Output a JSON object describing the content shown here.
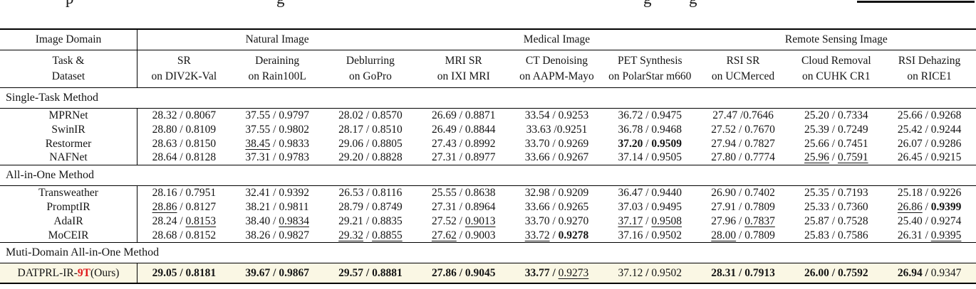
{
  "caption_fragments": {
    "glyphs": [
      "p",
      "g",
      "g",
      "g"
    ],
    "underline_fragment": true
  },
  "colors": {
    "highlight_row_bg": "#faf7e4",
    "accent_red": "#e0191d",
    "rule_black": "#000000"
  },
  "table": {
    "corner_header": "Image Domain",
    "task_header_line1": "Task &",
    "task_header_line2": "Dataset",
    "domain_groups": [
      {
        "label": "Natural Image",
        "span": 3
      },
      {
        "label": "Medical Image",
        "span": 3
      },
      {
        "label": "Remote Sensing Image",
        "span": 3
      }
    ],
    "tasks": [
      {
        "task": "SR",
        "dataset": "on DIV2K-Val"
      },
      {
        "task": "Deraining",
        "dataset": "on Rain100L"
      },
      {
        "task": "Deblurring",
        "dataset": "on GoPro"
      },
      {
        "task": "MRI SR",
        "dataset": "on IXI MRI"
      },
      {
        "task": "CT Denoising",
        "dataset": "on AAPM-Mayo"
      },
      {
        "task": "PET Synthesis",
        "dataset": "on PolarStar m660"
      },
      {
        "task": "RSI SR",
        "dataset": "on UCMerced"
      },
      {
        "task": "Cloud Removal",
        "dataset": "on CUHK CR1"
      },
      {
        "task": "RSI Dehazing",
        "dataset": "on RICE1"
      }
    ],
    "style_legend": "cell = [psnr, ssim, psnr_style, ssim_style, optional_separator]; style: b=bold, u=underline; default separator ' / '",
    "sections": [
      {
        "title": "Single-Task Method",
        "rows": [
          {
            "method": "MPRNet",
            "cells": [
              [
                "28.32",
                "0.8067",
                "",
                ""
              ],
              [
                "37.55",
                "0.9797",
                "",
                ""
              ],
              [
                "28.02",
                "0.8570",
                "",
                ""
              ],
              [
                "26.69",
                "0.8871",
                "",
                ""
              ],
              [
                "33.54",
                "0.9253",
                "",
                ""
              ],
              [
                "36.72",
                "0.9475",
                "",
                ""
              ],
              [
                "27.47",
                "0.7646",
                "",
                "",
                " /"
              ],
              [
                "25.20",
                "0.7334",
                "",
                ""
              ],
              [
                "25.66",
                "0.9268",
                "",
                ""
              ]
            ]
          },
          {
            "method": "SwinIR",
            "cells": [
              [
                "28.80",
                "0.8109",
                "",
                ""
              ],
              [
                "37.55",
                "0.9802",
                "",
                ""
              ],
              [
                "28.17",
                "0.8510",
                "",
                ""
              ],
              [
                "26.49",
                "0.8844",
                "",
                ""
              ],
              [
                "33.63",
                "0.9251",
                "",
                "",
                " /"
              ],
              [
                "36.78",
                "0.9468",
                "",
                ""
              ],
              [
                "27.52",
                "0.7670",
                "",
                ""
              ],
              [
                "25.39",
                "0.7249",
                "",
                ""
              ],
              [
                "25.42",
                "0.9244",
                "",
                ""
              ]
            ]
          },
          {
            "method": "Restormer",
            "cells": [
              [
                "28.63",
                "0.8150",
                "",
                ""
              ],
              [
                "38.45",
                "0.9833",
                "u",
                ""
              ],
              [
                "29.06",
                "0.8805",
                "",
                ""
              ],
              [
                "27.43",
                "0.8992",
                "",
                ""
              ],
              [
                "33.70",
                "0.9269",
                "",
                ""
              ],
              [
                "37.20",
                "0.9509",
                "b",
                "b"
              ],
              [
                "27.94",
                "0.7827",
                "",
                ""
              ],
              [
                "25.66",
                "0.7451",
                "",
                ""
              ],
              [
                "26.07",
                "0.9286",
                "",
                ""
              ]
            ]
          },
          {
            "method": "NAFNet",
            "cells": [
              [
                "28.64",
                "0.8128",
                "",
                ""
              ],
              [
                "37.31",
                "0.9783",
                "",
                ""
              ],
              [
                "29.20",
                "0.8828",
                "",
                ""
              ],
              [
                "27.31",
                "0.8977",
                "",
                ""
              ],
              [
                "33.66",
                "0.9267",
                "",
                ""
              ],
              [
                "37.14",
                "0.9505",
                "",
                ""
              ],
              [
                "27.80",
                "0.7774",
                "",
                ""
              ],
              [
                "25.96",
                "0.7591",
                "u",
                "u"
              ],
              [
                "26.45",
                "0.9215",
                "",
                ""
              ]
            ]
          }
        ]
      },
      {
        "title": "All-in-One Method",
        "rows": [
          {
            "method": "Transweather",
            "cells": [
              [
                "28.16",
                "0.7951",
                "",
                ""
              ],
              [
                "32.41",
                "0.9392",
                "",
                ""
              ],
              [
                "26.53",
                "0.8116",
                "",
                ""
              ],
              [
                "25.55",
                "0.8638",
                "",
                ""
              ],
              [
                "32.98",
                "0.9209",
                "",
                ""
              ],
              [
                "36.47",
                "0.9440",
                "",
                ""
              ],
              [
                "26.90",
                "0.7402",
                "",
                ""
              ],
              [
                "25.35",
                "0.7193",
                "",
                ""
              ],
              [
                "25.18",
                "0.9226",
                "",
                ""
              ]
            ]
          },
          {
            "method": "PromptIR",
            "cells": [
              [
                "28.86",
                "0.8127",
                "u",
                ""
              ],
              [
                "38.21",
                "0.9811",
                "",
                ""
              ],
              [
                "28.79",
                "0.8749",
                "",
                ""
              ],
              [
                "27.31",
                "0.8964",
                "",
                ""
              ],
              [
                "33.66",
                "0.9265",
                "",
                ""
              ],
              [
                "37.03",
                "0.9495",
                "",
                ""
              ],
              [
                "27.91",
                "0.7809",
                "",
                ""
              ],
              [
                "25.33",
                "0.7360",
                "",
                ""
              ],
              [
                "26.86",
                "0.9399",
                "u",
                "b"
              ]
            ]
          },
          {
            "method": "AdaIR",
            "cells": [
              [
                "28.24",
                "0.8153",
                "",
                "u"
              ],
              [
                "38.40",
                "0.9834",
                "",
                "u"
              ],
              [
                "29.21",
                "0.8835",
                "",
                ""
              ],
              [
                "27.52",
                "0.9013",
                "",
                "u"
              ],
              [
                "33.70",
                "0.9270",
                "",
                ""
              ],
              [
                "37.17",
                "0.9508",
                "u",
                "u"
              ],
              [
                "27.96",
                "0.7837",
                "",
                "u"
              ],
              [
                "25.87",
                "0.7528",
                "",
                ""
              ],
              [
                "25.40",
                "0.9274",
                "",
                ""
              ]
            ]
          },
          {
            "method": "MoCEIR",
            "cells": [
              [
                "28.68",
                "0.8152",
                "",
                ""
              ],
              [
                "38.26",
                "0.9827",
                "",
                ""
              ],
              [
                "29.32",
                "0.8855",
                "u",
                "u"
              ],
              [
                "27.62",
                "0.9003",
                "u",
                ""
              ],
              [
                "33.72",
                "0.9278",
                "u",
                "b"
              ],
              [
                "37.16",
                "0.9502",
                "",
                ""
              ],
              [
                "28.00",
                "0.7809",
                "u",
                ""
              ],
              [
                "25.83",
                "0.7586",
                "",
                ""
              ],
              [
                "26.31",
                "0.9395",
                "",
                "u"
              ]
            ]
          }
        ]
      },
      {
        "title": "Muti-Domain All-in-One Method",
        "rows": [
          {
            "method_parts": [
              {
                "t": "DATPRL-IR-",
                "s": ""
              },
              {
                "t": "9T",
                "s": "br"
              },
              {
                "t": " (Ours)",
                "s": ""
              }
            ],
            "highlight": true,
            "cells": [
              [
                "29.05",
                "0.8181",
                "b",
                "b"
              ],
              [
                "39.67",
                "0.9867",
                "b",
                "b"
              ],
              [
                "29.57",
                "0.8881",
                "b",
                "b"
              ],
              [
                "27.86",
                "0.9045",
                "b",
                "b"
              ],
              [
                "33.77",
                "0.9273",
                "b",
                "u-plain"
              ],
              [
                "37.12",
                "0.9502",
                "plain",
                "plain"
              ],
              [
                "28.31",
                "0.7913",
                "b",
                "b"
              ],
              [
                "26.00",
                "0.7592",
                "b",
                "b"
              ],
              [
                "26.94",
                "0.9347",
                "b",
                "plain"
              ]
            ]
          }
        ]
      }
    ]
  }
}
